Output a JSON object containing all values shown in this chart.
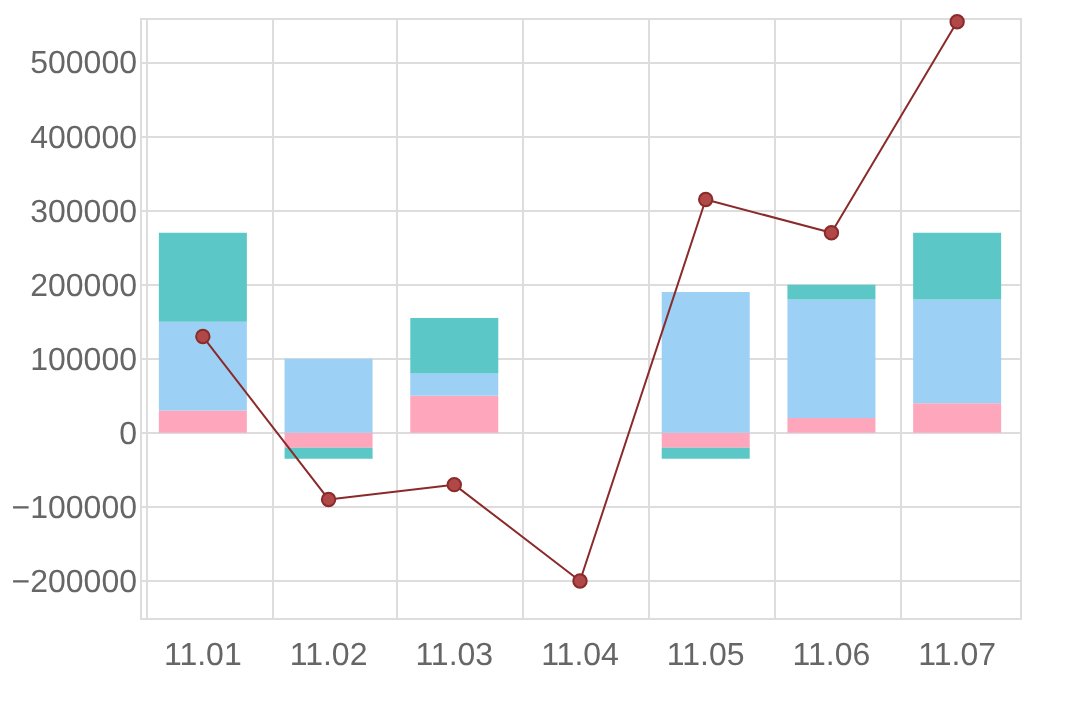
{
  "chart_data": {
    "type": "bar",
    "stacked": true,
    "categories": [
      "11.01",
      "11.02",
      "11.03",
      "11.04",
      "11.05",
      "11.06",
      "11.07"
    ],
    "series": [
      {
        "color": "#fea6bc",
        "values": [
          30000,
          -20000,
          50000,
          null,
          -20000,
          20000,
          40000
        ]
      },
      {
        "color": "#9dd0f5",
        "values": [
          120000,
          100000,
          30000,
          null,
          190000,
          160000,
          140000
        ]
      },
      {
        "color": "#5bc7c7",
        "values": [
          120000,
          -15000,
          75000,
          null,
          -15000,
          20000,
          90000
        ]
      },
      {
        "type": "line",
        "color": "#8b2a2a",
        "values": [
          130000,
          -90000,
          -70000,
          -200000,
          315000,
          270000,
          555000
        ]
      }
    ],
    "ylim": [
      -250000,
      560000
    ],
    "yticks": [
      -200000,
      -100000,
      0,
      100000,
      200000,
      300000,
      400000,
      500000
    ],
    "grid": true,
    "marker": "circle",
    "line_style": "solid"
  }
}
